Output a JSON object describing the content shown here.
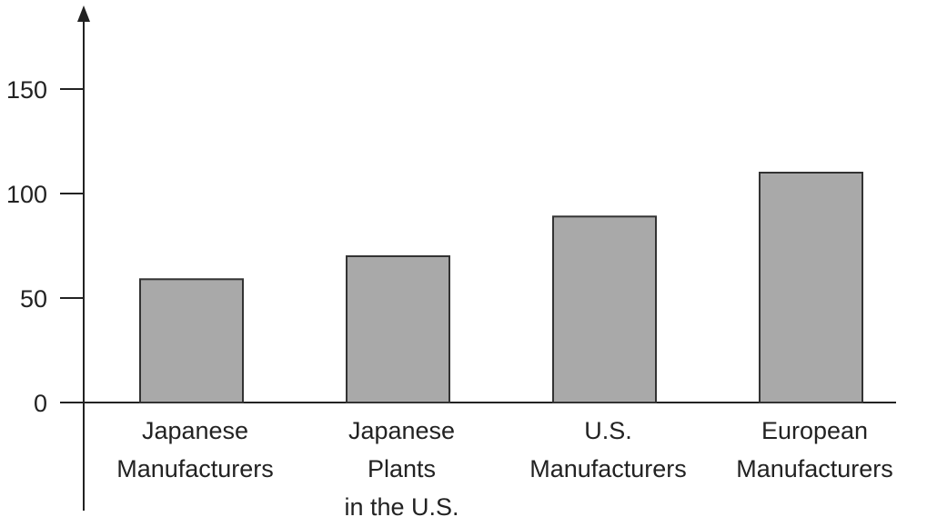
{
  "chart_data": {
    "type": "bar",
    "title": "",
    "xlabel": "",
    "ylabel": "",
    "categories": [
      [
        "Japanese",
        "Manufacturers"
      ],
      [
        "Japanese",
        "Plants",
        "in the U.S."
      ],
      [
        "U.S.",
        "Manufacturers"
      ],
      [
        "European",
        "Manufacturers"
      ]
    ],
    "values": [
      59,
      70,
      89,
      110
    ],
    "ylim": [
      0,
      180
    ],
    "yticks": [
      0,
      50,
      100,
      150
    ],
    "ytick_labels": [
      "0",
      "50",
      "100",
      "150"
    ],
    "grid": false,
    "bar_color": "#a9a9a9",
    "bar_edge_color": "#333333"
  }
}
